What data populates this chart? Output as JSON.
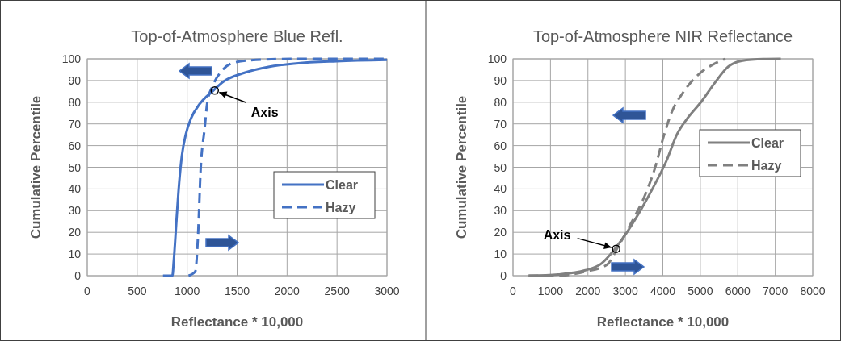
{
  "chart_data": [
    {
      "type": "line",
      "title": "Top-of-Atmosphere Blue Refl.",
      "xlabel": "Reflectance * 10,000",
      "ylabel": "Cumulative Percentile",
      "xlim": [
        0,
        3000
      ],
      "xticks": [
        0,
        500,
        1000,
        1500,
        2000,
        2500,
        3000
      ],
      "ylim": [
        0,
        100
      ],
      "yticks": [
        0,
        10,
        20,
        30,
        40,
        50,
        60,
        70,
        80,
        90,
        100
      ],
      "grid": true,
      "legend": "right",
      "marker": "none",
      "annotations": [
        {
          "text": "Axis",
          "x": 1276,
          "y": 85.4
        }
      ],
      "series": [
        {
          "name": "Clear",
          "color": "#4472c4",
          "line_style": "solid",
          "x": [
            758,
            852,
            866,
            893,
            920,
            947,
            987,
            1041,
            1122,
            1257,
            1365,
            1553,
            1823,
            2092,
            2497,
            3000
          ],
          "values": [
            0,
            0,
            6.9,
            25.5,
            42.9,
            55.3,
            65.3,
            72.8,
            79,
            85.2,
            89.6,
            93.3,
            96.4,
            97.9,
            98.9,
            99.5
          ]
        },
        {
          "name": "Hazy",
          "color": "#4472c4",
          "line_style": "dashed",
          "x": [
            1014,
            1081,
            1108,
            1135,
            1175,
            1202,
            1257,
            1338,
            1473,
            1689,
            2092,
            3000
          ],
          "values": [
            0,
            1.9,
            18,
            49,
            68,
            80,
            87.7,
            94,
            98.3,
            99.5,
            100,
            100
          ]
        }
      ]
    },
    {
      "type": "line",
      "title": "Top-of-Atmosphere NIR Reflectance",
      "xlabel": "Reflectance * 10,000",
      "ylabel": "Cumulative Percentile",
      "xlim": [
        0,
        8000
      ],
      "xticks": [
        0,
        1000,
        2000,
        3000,
        4000,
        5000,
        6000,
        7000,
        8000
      ],
      "ylim": [
        0,
        100
      ],
      "yticks": [
        0,
        10,
        20,
        30,
        40,
        50,
        60,
        70,
        80,
        90,
        100
      ],
      "grid": true,
      "legend": "top right",
      "marker": "none",
      "annotations": [
        {
          "text": "Axis",
          "x": 2753,
          "y": 12.4
        }
      ],
      "series": [
        {
          "name": "Clear",
          "color": "#808080",
          "line_style": "solid",
          "x": [
            417,
            1209,
            1929,
            2361,
            2721,
            3009,
            3369,
            3729,
            4089,
            4377,
            4665,
            5025,
            5385,
            5745,
            6105,
            6681,
            7149
          ],
          "values": [
            0,
            0.6,
            2.5,
            5.6,
            12.4,
            19.2,
            29.1,
            40.3,
            52.7,
            65.2,
            72.8,
            80.2,
            88.9,
            96.4,
            99.1,
            99.9,
            100
          ]
        },
        {
          "name": "Hazy",
          "color": "#808080",
          "line_style": "dashed",
          "x": [
            417,
            1209,
            1929,
            2505,
            2793,
            3153,
            3513,
            3801,
            4017,
            4233,
            4521,
            4953,
            5385,
            5673
          ],
          "values": [
            0,
            0,
            1.9,
            5,
            13,
            24.3,
            36.7,
            50.3,
            64,
            75.3,
            84,
            92.8,
            97.8,
            100
          ]
        }
      ]
    }
  ]
}
